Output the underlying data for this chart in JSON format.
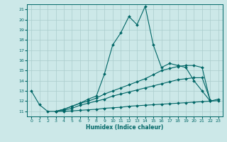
{
  "xlabel": "Humidex (Indice chaleur)",
  "bg_color": "#cce8e8",
  "grid_color": "#aacccc",
  "line_color": "#006666",
  "xlim": [
    -0.5,
    23.5
  ],
  "ylim": [
    10.5,
    21.5
  ],
  "yticks": [
    11,
    12,
    13,
    14,
    15,
    16,
    17,
    18,
    19,
    20,
    21
  ],
  "xticks": [
    0,
    1,
    2,
    3,
    4,
    5,
    6,
    7,
    8,
    9,
    10,
    11,
    12,
    13,
    14,
    15,
    16,
    17,
    18,
    19,
    20,
    21,
    22,
    23
  ],
  "line1_x": [
    0,
    1,
    2,
    3,
    4,
    5,
    6,
    7,
    8,
    9,
    10,
    11,
    12,
    13,
    14,
    15,
    16,
    17,
    18,
    19,
    20,
    21,
    22,
    23
  ],
  "line1_y": [
    13.0,
    11.65,
    11.0,
    11.0,
    11.2,
    11.5,
    11.8,
    12.2,
    12.5,
    14.7,
    17.5,
    18.7,
    20.3,
    19.5,
    21.3,
    17.5,
    15.3,
    15.7,
    15.5,
    15.3,
    14.0,
    13.0,
    12.0,
    12.2
  ],
  "line2_x": [
    3,
    4,
    5,
    6,
    7,
    8,
    9,
    10,
    11,
    12,
    13,
    14,
    15,
    16,
    17,
    18,
    19,
    20,
    21,
    22
  ],
  "line2_y": [
    11.0,
    11.2,
    11.5,
    11.8,
    12.0,
    12.3,
    12.7,
    13.0,
    13.3,
    13.6,
    13.9,
    14.2,
    14.6,
    15.0,
    15.2,
    15.4,
    15.5,
    15.5,
    15.3,
    12.0
  ],
  "line3_x": [
    3,
    4,
    5,
    6,
    7,
    8,
    9,
    10,
    11,
    12,
    13,
    14,
    15,
    16,
    17,
    18,
    19,
    20,
    21,
    22
  ],
  "line3_y": [
    11.0,
    11.1,
    11.3,
    11.6,
    11.8,
    12.0,
    12.2,
    12.5,
    12.7,
    12.9,
    13.1,
    13.3,
    13.5,
    13.7,
    13.9,
    14.1,
    14.2,
    14.3,
    14.3,
    12.1
  ],
  "line4_x": [
    3,
    4,
    5,
    6,
    7,
    8,
    9,
    10,
    11,
    12,
    13,
    14,
    15,
    16,
    17,
    18,
    19,
    20,
    21,
    22,
    23
  ],
  "line4_y": [
    11.0,
    11.0,
    11.05,
    11.1,
    11.15,
    11.2,
    11.3,
    11.35,
    11.4,
    11.5,
    11.55,
    11.6,
    11.65,
    11.7,
    11.75,
    11.8,
    11.85,
    11.9,
    11.95,
    12.0,
    12.05
  ]
}
